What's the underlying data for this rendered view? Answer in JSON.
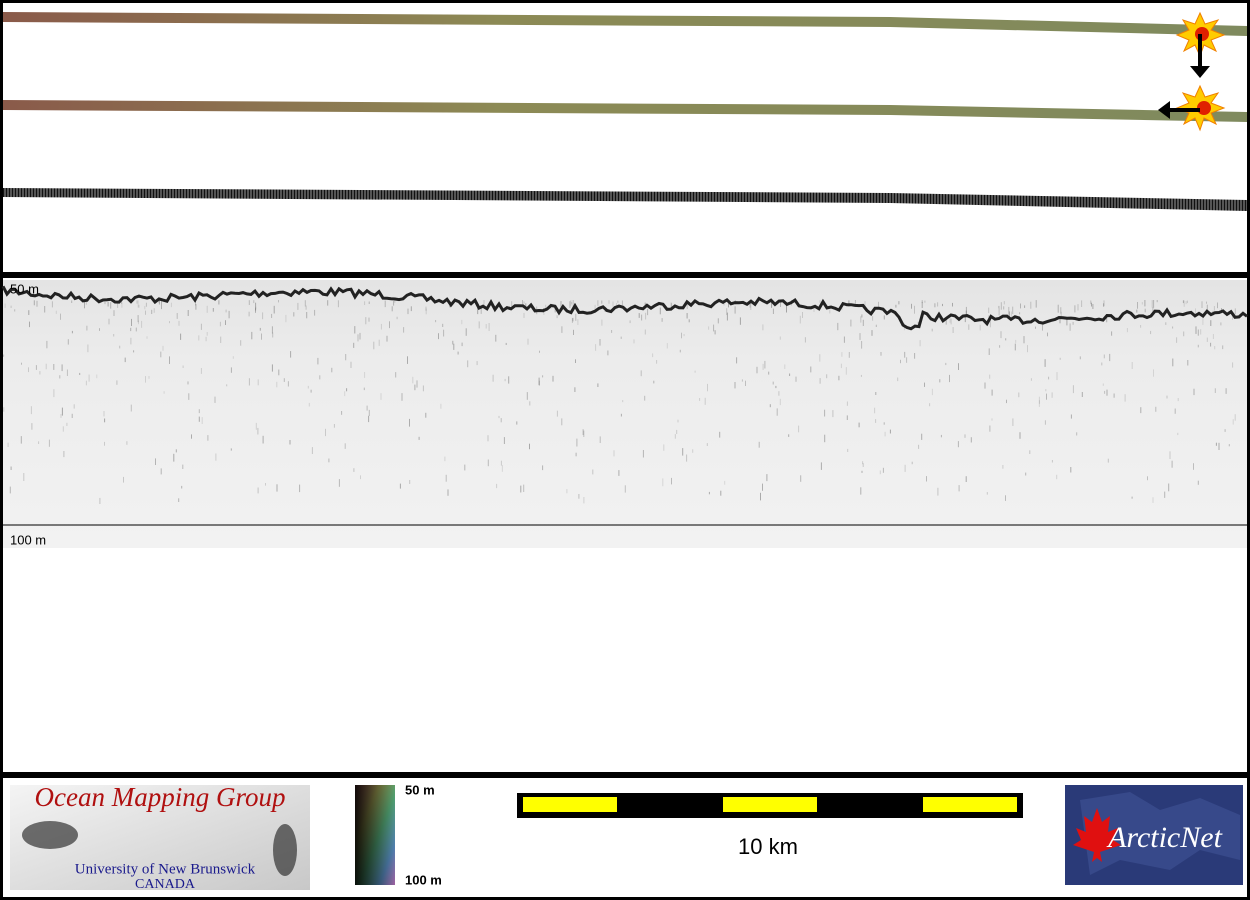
{
  "profile": {
    "top_label": "50 m",
    "bottom_label": "100 m"
  },
  "logo": {
    "title": "Ocean Mapping Group",
    "university": "University of New Brunswick",
    "country": "CANADA"
  },
  "legend": {
    "top": "50 m",
    "bottom": "100 m"
  },
  "scale_bar": {
    "label": "10 km"
  },
  "partner_logo": {
    "name": "ArcticNet"
  }
}
